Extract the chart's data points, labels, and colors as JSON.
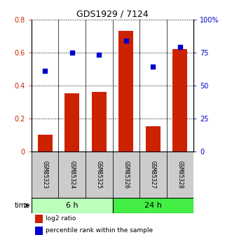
{
  "title": "GDS1929 / 7124",
  "categories": [
    "GSM85323",
    "GSM85324",
    "GSM85325",
    "GSM85326",
    "GSM85327",
    "GSM85328"
  ],
  "log2_ratio": [
    0.1,
    0.35,
    0.36,
    0.73,
    0.15,
    0.62
  ],
  "percentile_rank": [
    61,
    75,
    73,
    84,
    64,
    79
  ],
  "bar_color": "#cc2200",
  "dot_color": "#0000cc",
  "left_ylim": [
    0,
    0.8
  ],
  "right_ylim": [
    0,
    100
  ],
  "left_yticks": [
    0,
    0.2,
    0.4,
    0.6,
    0.8
  ],
  "right_yticks": [
    0,
    25,
    50,
    75,
    100
  ],
  "left_ytick_labels": [
    "0",
    "0.2",
    "0.4",
    "0.6",
    "0.8"
  ],
  "right_ytick_labels": [
    "0",
    "25",
    "50",
    "75",
    "100%"
  ],
  "groups": [
    {
      "label": "6 h",
      "indices": [
        0,
        1,
        2
      ],
      "color": "#bbffbb"
    },
    {
      "label": "24 h",
      "indices": [
        3,
        4,
        5
      ],
      "color": "#44ee44"
    }
  ],
  "legend_items": [
    {
      "label": "log2 ratio",
      "color": "#cc2200"
    },
    {
      "label": "percentile rank within the sample",
      "color": "#0000cc"
    }
  ],
  "background_color": "#ffffff",
  "bar_width": 0.55,
  "sample_box_color": "#cccccc",
  "sample_box_edge": "#888888"
}
